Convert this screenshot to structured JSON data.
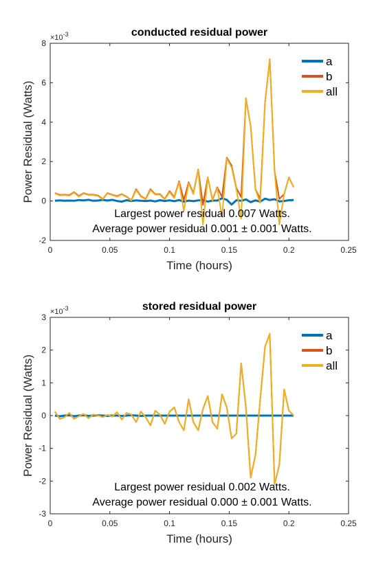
{
  "chart_data": [
    {
      "type": "line",
      "title": "conducted residual power",
      "xlabel": "Time (hours)",
      "ylabel": "Power Residual (Watts)",
      "exponent_label": "×10",
      "exponent_power": "-3",
      "xlim": [
        0,
        0.25
      ],
      "ylim": [
        -0.002,
        0.008
      ],
      "xticks": [
        0,
        0.05,
        0.1,
        0.15,
        0.2,
        0.25
      ],
      "xtick_labels": [
        "0",
        "0.05",
        "0.1",
        "0.15",
        "0.2",
        "0.25"
      ],
      "yticks": [
        -0.002,
        0,
        0.002,
        0.004,
        0.006,
        0.008
      ],
      "ytick_labels": [
        "-2",
        "0",
        "2",
        "4",
        "6",
        "8"
      ],
      "legend_position": "top-right",
      "annotations": [
        "Largest power residual 0.007 Watts.",
        "Average power residual 0.001 ± 0.001 Watts."
      ],
      "x": [
        0.004,
        0.008,
        0.012,
        0.016,
        0.02,
        0.024,
        0.028,
        0.032,
        0.036,
        0.04,
        0.044,
        0.048,
        0.052,
        0.056,
        0.06,
        0.064,
        0.068,
        0.072,
        0.076,
        0.08,
        0.084,
        0.088,
        0.092,
        0.096,
        0.1,
        0.104,
        0.108,
        0.112,
        0.116,
        0.12,
        0.124,
        0.128,
        0.132,
        0.136,
        0.14,
        0.144,
        0.148,
        0.152,
        0.156,
        0.16,
        0.164,
        0.168,
        0.172,
        0.176,
        0.18,
        0.184,
        0.188,
        0.192,
        0.196,
        0.2,
        0.204
      ],
      "series": [
        {
          "name": "a",
          "color": "#0072BD",
          "values": [
            1e-05,
            3e-05,
            1e-05,
            2e-05,
            1e-05,
            5e-05,
            3e-05,
            6e-05,
            1e-05,
            2e-05,
            6e-05,
            2e-05,
            6e-05,
            0,
            -3e-05,
            4e-05,
            0,
            3e-05,
            1e-05,
            0,
            2e-05,
            -2e-05,
            4e-05,
            0,
            3e-05,
            -1e-05,
            5e-05,
            -4e-05,
            2e-05,
            -1e-05,
            3e-05,
            5e-05,
            -3e-05,
            2e-05,
            2e-05,
            0.00014,
            6e-05,
            -0.00018,
            4e-05,
            1e-05,
            8e-05,
            -6e-05,
            3e-05,
            -3e-05,
            0.00012,
            5e-05,
            9e-05,
            -2e-05,
            0,
            4e-05,
            5e-05
          ]
        },
        {
          "name": "b",
          "color": "#D95319",
          "values": [
            0.0004,
            0.00031,
            0.00032,
            0.0003,
            0.00045,
            0.00025,
            0.0004,
            0.00032,
            0.00032,
            0.00028,
            0.0001,
            0.0004,
            0.00032,
            0.00025,
            0.00035,
            0.00022,
            4e-05,
            0.0006,
            0.00025,
            0.0001,
            0.0006,
            0.00035,
            0.00035,
            0.0001,
            0.0005,
            0.0002,
            0.001,
            5e-05,
            0.00095,
            0.0004,
            0.0016,
            -0.0002,
            0.0012,
            5e-05,
            0.0007,
            0.0002,
            0.0022,
            0.0018,
            0.00065,
            0.0002,
            0.0052,
            0.0038,
            0.0006,
            0.0001,
            0.005,
            0.0072,
            0.0015,
            0.0001,
            0.00035,
            0.0012,
            0.0007
          ]
        },
        {
          "name": "all",
          "color": "#EDB120",
          "values": [
            0.00038,
            0.00028,
            0.0003,
            0.00027,
            0.00042,
            0.00022,
            0.00038,
            0.0003,
            0.0003,
            0.00025,
            8e-05,
            0.00038,
            0.0003,
            0.00022,
            0.00033,
            0.0002,
            2e-05,
            0.00055,
            0.00022,
            8e-05,
            0.00055,
            0.00032,
            0.00032,
            8e-05,
            0.00045,
            0.00015,
            0.00095,
            -0.0005,
            0.0009,
            0.00035,
            0.00158,
            -0.0012,
            0.00118,
            2e-05,
            0.00066,
            -0.0008,
            0.00215,
            0.0017,
            0.0006,
            -0.0009,
            0.00522,
            0.0038,
            0.00058,
            -0.0001,
            0.005,
            0.0072,
            0.0015,
            -0.0012,
            0.00035,
            0.0012,
            0.0007
          ]
        }
      ]
    },
    {
      "type": "line",
      "title": "stored residual power",
      "xlabel": "Time (hours)",
      "ylabel": "Power Residual (Watts)",
      "exponent_label": "×10",
      "exponent_power": "-3",
      "xlim": [
        0,
        0.25
      ],
      "ylim": [
        -0.003,
        0.003
      ],
      "xticks": [
        0,
        0.05,
        0.1,
        0.15,
        0.2,
        0.25
      ],
      "xtick_labels": [
        "0",
        "0.05",
        "0.1",
        "0.15",
        "0.2",
        "0.25"
      ],
      "yticks": [
        -0.003,
        -0.002,
        -0.001,
        0,
        0.001,
        0.002,
        0.003
      ],
      "ytick_labels": [
        "-3",
        "-2",
        "-1",
        "0",
        "1",
        "2",
        "3"
      ],
      "legend_position": "top-right",
      "annotations": [
        "Largest power residual 0.002 Watts.",
        "Average power residual 0.000 ± 0.001 Watts."
      ],
      "x": [
        0.004,
        0.008,
        0.012,
        0.016,
        0.02,
        0.024,
        0.028,
        0.032,
        0.036,
        0.04,
        0.044,
        0.048,
        0.052,
        0.056,
        0.06,
        0.064,
        0.068,
        0.072,
        0.076,
        0.08,
        0.084,
        0.088,
        0.092,
        0.096,
        0.1,
        0.104,
        0.108,
        0.112,
        0.116,
        0.12,
        0.124,
        0.128,
        0.132,
        0.136,
        0.14,
        0.144,
        0.148,
        0.152,
        0.156,
        0.16,
        0.164,
        0.168,
        0.172,
        0.176,
        0.18,
        0.184,
        0.188,
        0.192,
        0.196,
        0.2,
        0.204
      ],
      "series": [
        {
          "name": "a",
          "color": "#0072BD",
          "values": [
            0,
            -2e-05,
            0,
            1e-05,
            -2e-05,
            0,
            1e-05,
            -1e-05,
            0,
            1e-05,
            0,
            -1e-05,
            0,
            0,
            -1e-05,
            0,
            1e-05,
            0,
            -1e-05,
            0,
            0,
            0,
            0,
            0,
            0,
            0,
            0,
            0,
            0,
            0,
            0,
            0,
            0,
            0,
            0,
            0,
            0,
            0,
            0,
            0,
            0,
            0,
            0,
            0,
            0,
            0,
            0,
            0,
            0,
            0,
            0
          ]
        },
        {
          "name": "b",
          "color": "#D95319",
          "values": [
            0.00012,
            -0.0001,
            -5e-05,
            8e-05,
            -0.0001,
            -2e-05,
            5e-05,
            -8e-05,
            3e-05,
            1e-05,
            -5e-05,
            2e-05,
            -3e-05,
            0.0001,
            -0.00012,
            8e-05,
            3e-05,
            -0.0002,
            0.00012,
            -5e-05,
            -0.0003,
            0.00015,
            2e-05,
            -0.00025,
            0.00012,
            0.00025,
            -0.0002,
            -0.00045,
            0.0005,
            -0.0002,
            -0.00045,
            0.0002,
            0.0006,
            -0.0002,
            -0.0004,
            0.00065,
            0.00025,
            -0.0007,
            -0.00055,
            0.0016,
            0.00025,
            -0.0019,
            -0.0012,
            0.0005,
            0.0021,
            0.0025,
            -0.0021,
            -0.0015,
            0.0008,
            0.00015,
            0
          ]
        },
        {
          "name": "all",
          "color": "#EDB120",
          "values": [
            0.00012,
            -0.0001,
            -5e-05,
            8e-05,
            -0.0001,
            -2e-05,
            5e-05,
            -8e-05,
            3e-05,
            1e-05,
            -5e-05,
            2e-05,
            -3e-05,
            0.0001,
            -0.00012,
            8e-05,
            3e-05,
            -0.0002,
            0.00012,
            -5e-05,
            -0.0003,
            0.00015,
            2e-05,
            -0.00025,
            0.00012,
            0.00025,
            -0.0002,
            -0.00045,
            0.0005,
            -0.0002,
            -0.00045,
            0.0002,
            0.0006,
            -0.0002,
            -0.0004,
            0.00065,
            0.00025,
            -0.0007,
            -0.00055,
            0.0016,
            0.00025,
            -0.0019,
            -0.0012,
            0.0005,
            0.0021,
            0.0025,
            -0.0021,
            -0.0015,
            0.0008,
            0.00015,
            0
          ]
        }
      ]
    }
  ]
}
